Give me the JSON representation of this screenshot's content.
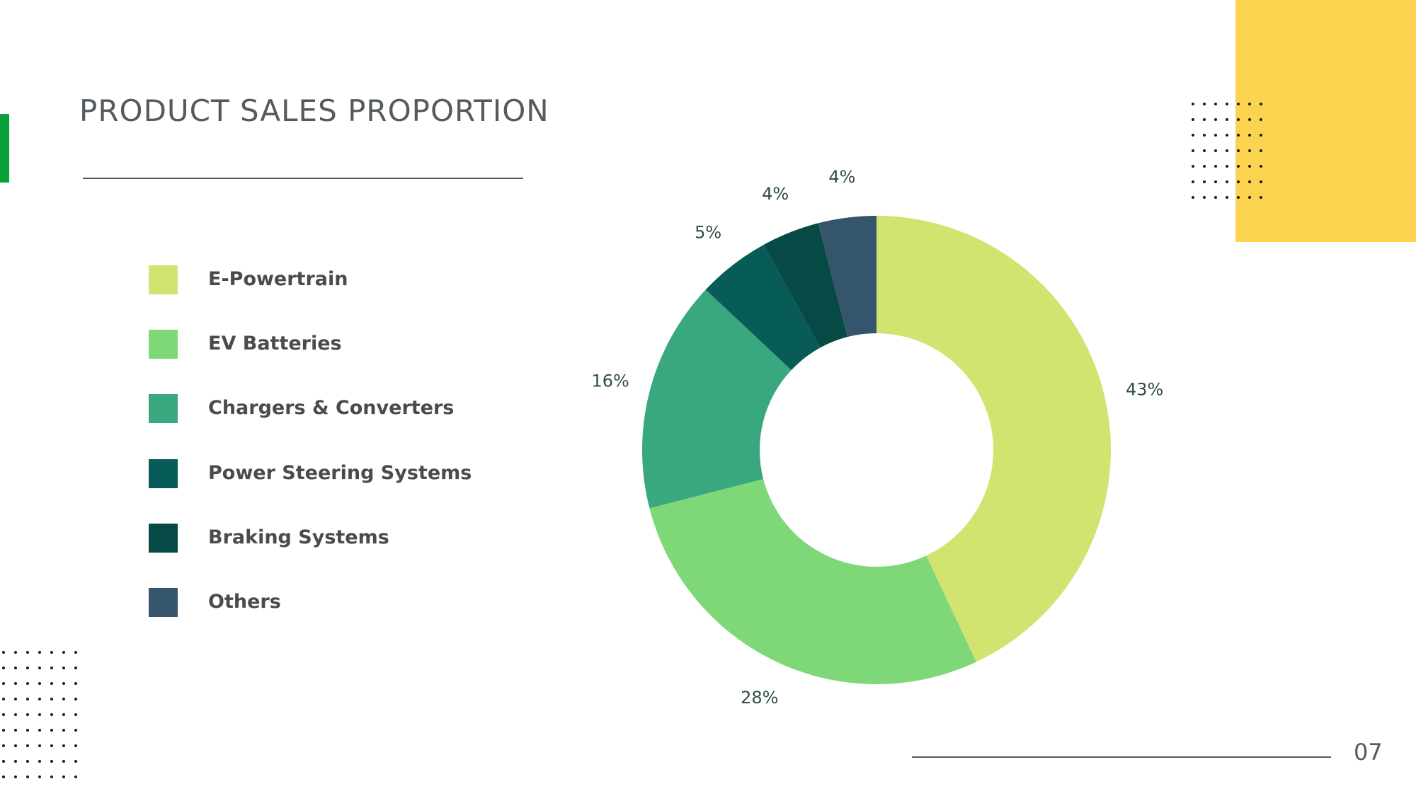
{
  "slide": {
    "title": "PRODUCT SALES PROPORTION",
    "page_number": "07"
  },
  "colors": {
    "accent_green": "#0aa13a",
    "accent_yellow": "#fcd34f",
    "text_dark": "#555a5e"
  },
  "legend": {
    "items": [
      {
        "label": "E-Powertrain",
        "color": "#d0e46f"
      },
      {
        "label": "EV Batteries",
        "color": "#7fd877"
      },
      {
        "label": "Chargers & Converters",
        "color": "#3aa87e"
      },
      {
        "label": "Power Steering Systems",
        "color": "#075c58"
      },
      {
        "label": "Braking Systems",
        "color": "#074a45"
      },
      {
        "label": "Others",
        "color": "#34556b"
      }
    ]
  },
  "chart_data": {
    "type": "pie",
    "donut": true,
    "title": "",
    "categories": [
      "E-Powertrain",
      "EV Batteries",
      "Chargers & Converters",
      "Power Steering Systems",
      "Braking Systems",
      "Others"
    ],
    "values": [
      43,
      28,
      16,
      5,
      4,
      4
    ],
    "value_labels": [
      "43%",
      "28%",
      "16%",
      "5%",
      "4%",
      "4%"
    ],
    "colors": [
      "#d0e46f",
      "#7fd877",
      "#3aa87e",
      "#075c58",
      "#074a45",
      "#34556b"
    ],
    "start_angle": "12 o'clock",
    "direction": "clockwise",
    "legend_placement": "left"
  }
}
